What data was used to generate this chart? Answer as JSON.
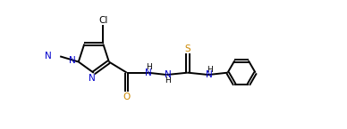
{
  "bg_color": "#ffffff",
  "line_color": "#000000",
  "atom_colors": {
    "N": "#0000cd",
    "O": "#cc8800",
    "S": "#cc8800",
    "Cl": "#000000",
    "C": "#000000",
    "H": "#000000"
  },
  "lw": 1.4,
  "xlim": [
    0,
    10
  ],
  "ylim": [
    0,
    3.74
  ]
}
